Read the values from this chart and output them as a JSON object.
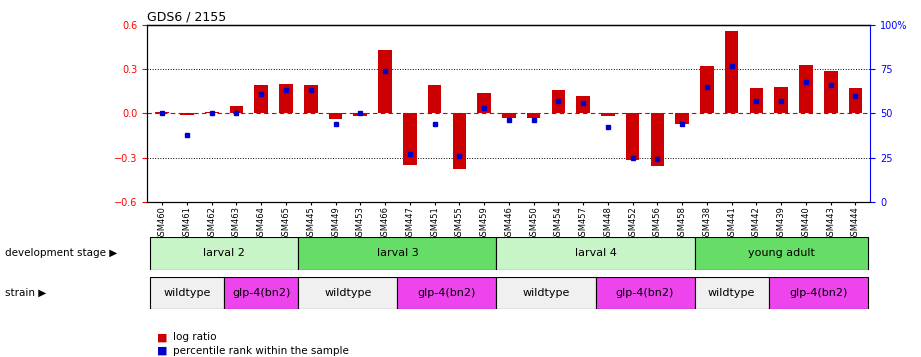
{
  "title": "GDS6 / 2155",
  "samples": [
    "GSM460",
    "GSM461",
    "GSM462",
    "GSM463",
    "GSM464",
    "GSM465",
    "GSM445",
    "GSM449",
    "GSM453",
    "GSM466",
    "GSM447",
    "GSM451",
    "GSM455",
    "GSM459",
    "GSM446",
    "GSM450",
    "GSM454",
    "GSM457",
    "GSM448",
    "GSM452",
    "GSM456",
    "GSM458",
    "GSM438",
    "GSM441",
    "GSM442",
    "GSM439",
    "GSM440",
    "GSM443",
    "GSM444"
  ],
  "log_ratios": [
    0.01,
    -0.01,
    0.01,
    0.05,
    0.19,
    0.2,
    0.19,
    -0.04,
    -0.02,
    0.43,
    -0.35,
    0.19,
    -0.38,
    0.14,
    -0.03,
    -0.03,
    0.16,
    0.12,
    -0.02,
    -0.32,
    -0.36,
    -0.07,
    0.32,
    0.56,
    0.17,
    0.18,
    0.33,
    0.29,
    0.17
  ],
  "percentile_ranks": [
    50,
    38,
    50,
    50,
    61,
    63,
    63,
    44,
    50,
    74,
    27,
    44,
    26,
    53,
    46,
    46,
    57,
    56,
    42,
    25,
    24,
    44,
    65,
    77,
    57,
    57,
    68,
    66,
    60
  ],
  "development_stages": [
    {
      "label": "larval 2",
      "start": 0,
      "end": 6,
      "color": "#c8f5c8"
    },
    {
      "label": "larval 3",
      "start": 6,
      "end": 14,
      "color": "#66dd66"
    },
    {
      "label": "larval 4",
      "start": 14,
      "end": 22,
      "color": "#c8f5c8"
    },
    {
      "label": "young adult",
      "start": 22,
      "end": 29,
      "color": "#66dd66"
    }
  ],
  "strains": [
    {
      "label": "wildtype",
      "start": 0,
      "end": 3,
      "color": "#f0f0f0"
    },
    {
      "label": "glp-4(bn2)",
      "start": 3,
      "end": 6,
      "color": "#ee44ee"
    },
    {
      "label": "wildtype",
      "start": 6,
      "end": 10,
      "color": "#f0f0f0"
    },
    {
      "label": "glp-4(bn2)",
      "start": 10,
      "end": 14,
      "color": "#ee44ee"
    },
    {
      "label": "wildtype",
      "start": 14,
      "end": 18,
      "color": "#f0f0f0"
    },
    {
      "label": "glp-4(bn2)",
      "start": 18,
      "end": 22,
      "color": "#ee44ee"
    },
    {
      "label": "wildtype",
      "start": 22,
      "end": 25,
      "color": "#f0f0f0"
    },
    {
      "label": "glp-4(bn2)",
      "start": 25,
      "end": 29,
      "color": "#ee44ee"
    }
  ],
  "ylim": [
    -0.6,
    0.6
  ],
  "y2lim": [
    0,
    100
  ],
  "bar_color": "#cc0000",
  "dot_color": "#0000cc",
  "zero_line_color": "#cc0000",
  "bg_color": "#ffffff"
}
